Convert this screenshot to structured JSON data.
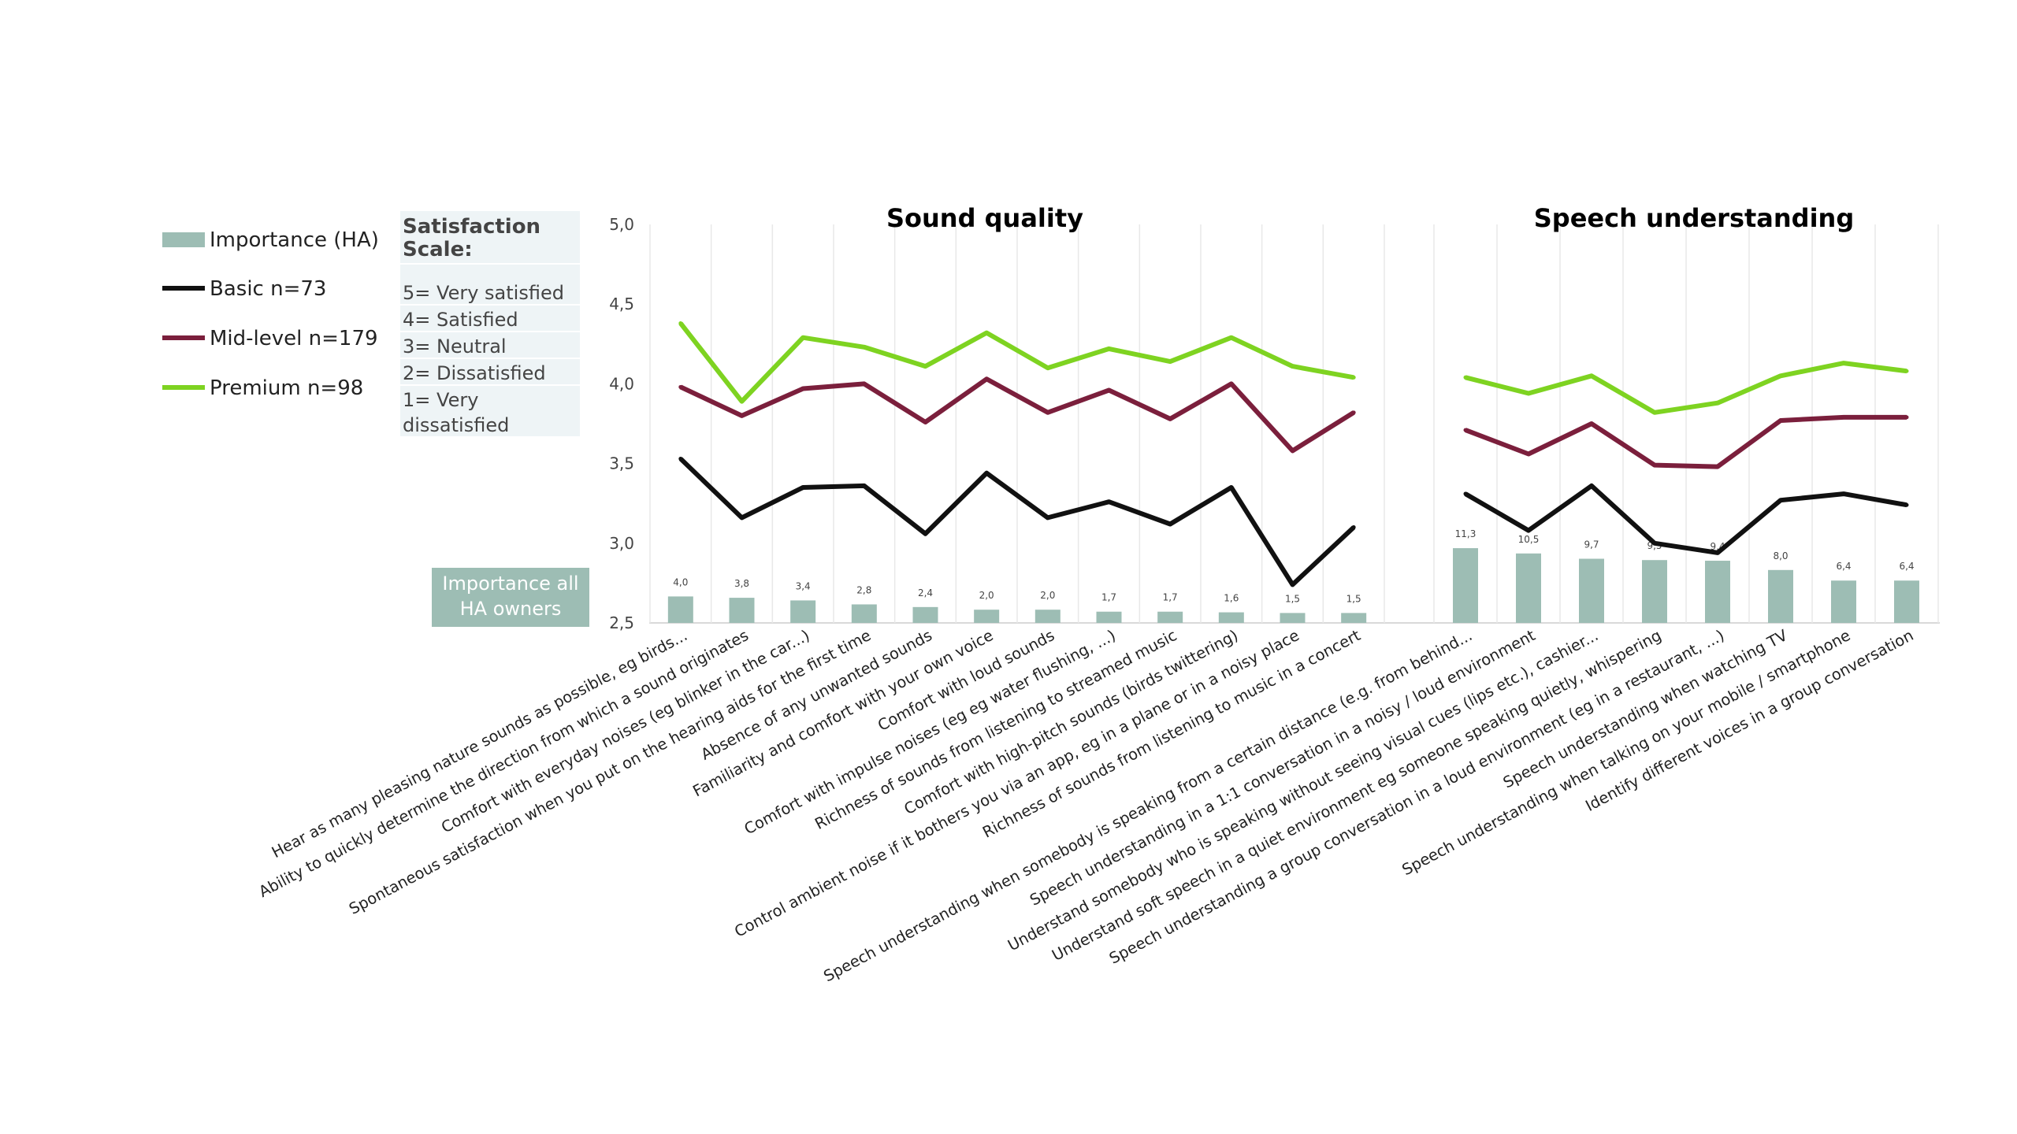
{
  "legend": {
    "items": [
      {
        "label": "Importance (HA)",
        "kind": "bar",
        "color": "#9dbdb4"
      },
      {
        "label": "Basic n=73",
        "kind": "line",
        "color": "#111111"
      },
      {
        "label": "Mid-level n=179",
        "kind": "line",
        "color": "#7b1f3c"
      },
      {
        "label": "Premium n=98",
        "kind": "line",
        "color": "#7ed321"
      }
    ]
  },
  "satisfaction_scale": {
    "title_lines": [
      "Satisfaction",
      "Scale:"
    ],
    "items": [
      "5= Very satisfied",
      "4= Satisfied",
      "3= Neutral",
      "2= Dissatisfied",
      "1= Very",
      "dissatisfied"
    ]
  },
  "importance_box": {
    "lines": [
      "Importance all",
      "HA owners"
    ]
  },
  "chart_data": [
    {
      "type": "bar+line",
      "title": "Sound quality",
      "ylim": [
        2.5,
        5.0
      ],
      "yticks": [
        "2,5",
        "3,0",
        "3,5",
        "4,0",
        "4,5",
        "5,0"
      ],
      "grid": "vertical",
      "categories": [
        "Hear as many pleasing nature sounds as possible, eg birds...",
        "Ability to quickly determine the direction from which a sound originates",
        "Comfort with everyday noises  (eg blinker in the car...)",
        "Spontaneous satisfaction when you put on the hearing aids for the first time",
        "Absence of any unwanted sounds",
        "Familiarity and comfort with your own voice",
        "Comfort with loud sounds",
        "Comfort with impulse noises (eg eg water flushing, ...)",
        "Richness of sounds from listening to  streamed music",
        "Comfort with high-pitch sounds (birds twittering)",
        "Control ambient noise if it bothers you via an app, eg in a plane or in a noisy place",
        "Richness of sounds from listening to music in a concert"
      ],
      "importance": {
        "name": "Importance (HA)",
        "values": [
          4.0,
          3.8,
          3.4,
          2.8,
          2.4,
          2.0,
          2.0,
          1.7,
          1.7,
          1.6,
          1.5,
          1.5
        ],
        "labels": [
          "4,0",
          "3,8",
          "3,4",
          "2,8",
          "2,4",
          "2,0",
          "2,0",
          "1,7",
          "1,7",
          "1,6",
          "1,5",
          "1,5"
        ]
      },
      "series": [
        {
          "name": "Basic n=73",
          "color": "#111111",
          "values": [
            3.53,
            3.16,
            3.35,
            3.36,
            3.06,
            3.44,
            3.16,
            3.26,
            3.12,
            3.35,
            2.74,
            3.1
          ]
        },
        {
          "name": "Mid-level n=179",
          "color": "#7b1f3c",
          "values": [
            3.98,
            3.8,
            3.97,
            4.0,
            3.76,
            4.03,
            3.82,
            3.96,
            3.78,
            4.0,
            3.58,
            3.82
          ]
        },
        {
          "name": "Premium n=98",
          "color": "#7ed321",
          "values": [
            4.38,
            3.89,
            4.29,
            4.23,
            4.11,
            4.32,
            4.1,
            4.22,
            4.14,
            4.29,
            4.11,
            4.04
          ]
        }
      ]
    },
    {
      "type": "bar+line",
      "title": "Speech understanding",
      "ylim": [
        2.5,
        5.0
      ],
      "grid": "vertical",
      "categories": [
        "Speech understanding when somebody is speaking from a certain distance  (e.g. from behind...",
        "Speech understanding in a 1:1 conversation in a noisy / loud environment",
        "Understand somebody who is speaking without seeing visual cues (lips etc.), cashier...",
        "Understand soft speech in a quiet environment eg someone speaking quietly, whispering",
        "Speech understanding a group conversation in a loud environment (eg in a restaurant, ...)",
        "Speech understanding when watching TV",
        "Speech understanding when talking on your mobile / smartphone",
        "Identify different voices in a group conversation"
      ],
      "importance": {
        "name": "Importance (HA)",
        "values": [
          11.3,
          10.5,
          9.7,
          9.5,
          9.4,
          8.0,
          6.4,
          6.4
        ],
        "labels": [
          "11,3",
          "10,5",
          "9,7",
          "9,5",
          "9,4",
          "8,0",
          "6,4",
          "6,4"
        ]
      },
      "series": [
        {
          "name": "Basic n=73",
          "color": "#111111",
          "values": [
            3.31,
            3.08,
            3.36,
            3.0,
            2.94,
            3.27,
            3.31,
            3.24
          ]
        },
        {
          "name": "Mid-level n=179",
          "color": "#7b1f3c",
          "values": [
            3.71,
            3.56,
            3.75,
            3.49,
            3.48,
            3.77,
            3.79,
            3.79
          ]
        },
        {
          "name": "Premium n=98",
          "color": "#7ed321",
          "values": [
            4.04,
            3.94,
            4.05,
            3.82,
            3.88,
            4.05,
            4.13,
            4.08
          ]
        }
      ]
    }
  ]
}
